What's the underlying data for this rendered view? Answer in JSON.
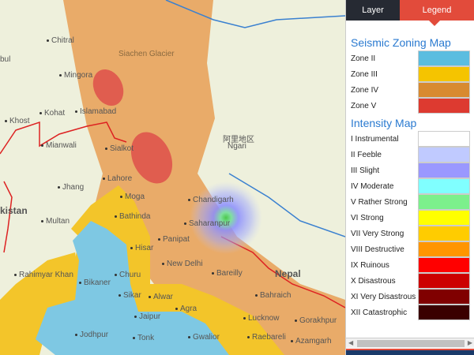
{
  "tabs": {
    "layer": "Layer",
    "legend": "Legend",
    "active": "Legend"
  },
  "seismic": {
    "title": "Seismic Zoning Map",
    "zones": [
      {
        "label": "Zone II",
        "color": "#5bbde0"
      },
      {
        "label": "Zone III",
        "color": "#f5c400"
      },
      {
        "label": "Zone IV",
        "color": "#d88a30"
      },
      {
        "label": "Zone V",
        "color": "#dd3a30"
      }
    ]
  },
  "intensity": {
    "title": "Intensity Map",
    "levels": [
      {
        "label": "I Instrumental",
        "color": "#ffffff"
      },
      {
        "label": "II Feeble",
        "color": "#c0caff"
      },
      {
        "label": "III Slight",
        "color": "#9a98ff"
      },
      {
        "label": "IV Moderate",
        "color": "#80ffff"
      },
      {
        "label": "V Rather Strong",
        "color": "#7cf08c"
      },
      {
        "label": "VI Strong",
        "color": "#ffff00"
      },
      {
        "label": "VII Very Strong",
        "color": "#ffcc00"
      },
      {
        "label": "VIII Destructive",
        "color": "#ff9500"
      },
      {
        "label": "IX Ruinous",
        "color": "#ff0000"
      },
      {
        "label": "X Disastrous",
        "color": "#cc0000"
      },
      {
        "label": "XI Very Disastrous",
        "color": "#800000"
      },
      {
        "label": "XII Catastrophic",
        "color": "#3a0000"
      }
    ]
  },
  "map": {
    "labels": [
      {
        "t": "Chitral",
        "c": "city"
      },
      {
        "t": "Mingora",
        "c": "city"
      },
      {
        "t": "Kohat",
        "c": "city"
      },
      {
        "t": "Khost",
        "c": "city"
      },
      {
        "t": "Islamabad",
        "c": "city"
      },
      {
        "t": "Mianwali",
        "c": "city"
      },
      {
        "t": "Sialkot",
        "c": "city"
      },
      {
        "t": "Lahore",
        "c": "city"
      },
      {
        "t": "Jhang",
        "c": "city"
      },
      {
        "t": "Multan",
        "c": "city"
      },
      {
        "t": "Rahimyar Khan",
        "c": "city"
      },
      {
        "t": "Bikaner",
        "c": "city"
      },
      {
        "t": "Churu",
        "c": "city"
      },
      {
        "t": "Sikar",
        "c": "city"
      },
      {
        "t": "Jaipur",
        "c": "city"
      },
      {
        "t": "Jodhpur",
        "c": "city"
      },
      {
        "t": "Tonk",
        "c": "city"
      },
      {
        "t": "Moga",
        "c": "city"
      },
      {
        "t": "Bathinda",
        "c": "city"
      },
      {
        "t": "Hisar",
        "c": "city"
      },
      {
        "t": "Panipat",
        "c": "city"
      },
      {
        "t": "New Delhi",
        "c": "city"
      },
      {
        "t": "Alwar",
        "c": "city"
      },
      {
        "t": "Agra",
        "c": "city"
      },
      {
        "t": "Chandigarh",
        "c": "city"
      },
      {
        "t": "Saharanpur",
        "c": "city"
      },
      {
        "t": "Bareilly",
        "c": "city"
      },
      {
        "t": "Bahraich",
        "c": "city"
      },
      {
        "t": "Lucknow",
        "c": "city"
      },
      {
        "t": "Gwalior",
        "c": "city"
      },
      {
        "t": "Raebareli",
        "c": "city"
      },
      {
        "t": "Gorakhpur",
        "c": "city"
      },
      {
        "t": "Azamgarh",
        "c": "city"
      },
      {
        "t": "阿里地区",
        "c": "plain"
      },
      {
        "t": "Ngari",
        "c": "plain"
      },
      {
        "t": "Siachen Glacier",
        "c": "dim"
      },
      {
        "t": "Nepal",
        "c": "big"
      },
      {
        "t": "kistan",
        "c": "big"
      },
      {
        "t": "bul",
        "c": "plain"
      }
    ]
  }
}
